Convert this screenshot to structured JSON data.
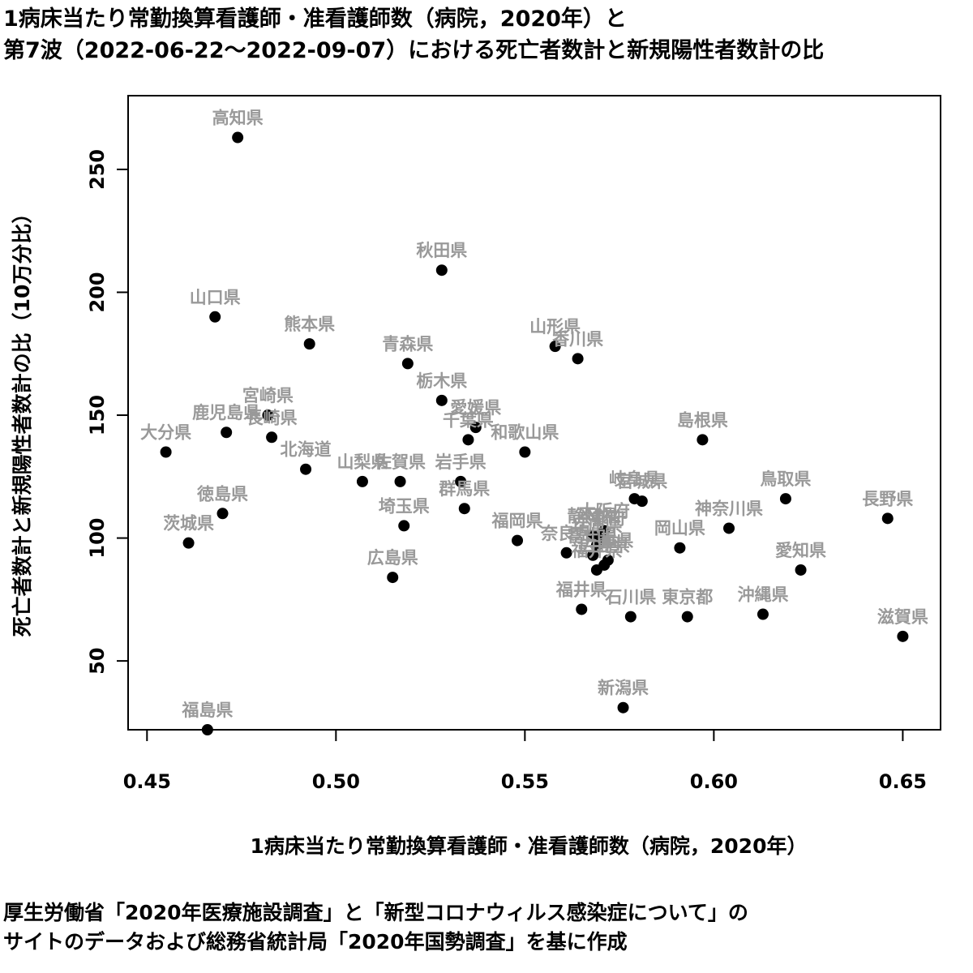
{
  "title": {
    "line1": "1病床当たり常勤換算看護師・准看護師数（病院，2020年）と",
    "line2": "第7波（2022-06-22～2022-09-07）における死亡者数計と新規陽性者数計の比"
  },
  "source": {
    "line1": "厚生労働省「2020年医療施設調査」と「新型コロナウィルス感染症について」の",
    "line2": "サイトのデータおよび総務省統計局「2020年国勢調査」を基に作成"
  },
  "chart_data": {
    "type": "scatter",
    "xlabel": "1病床当たり常勤換算看護師・准看護師数（病院，2020年）",
    "ylabel": "死亡者数計と新規陽性者数計の比（10万分比）",
    "xlim": [
      0.445,
      0.66
    ],
    "ylim": [
      22,
      280
    ],
    "x_ticks": [
      {
        "value": 0.45,
        "label": "0.45"
      },
      {
        "value": 0.5,
        "label": "0.50"
      },
      {
        "value": 0.55,
        "label": "0.55"
      },
      {
        "value": 0.6,
        "label": "0.60"
      },
      {
        "value": 0.65,
        "label": "0.65"
      }
    ],
    "y_ticks": [
      {
        "value": 50,
        "label": "50"
      },
      {
        "value": 100,
        "label": "100"
      },
      {
        "value": 150,
        "label": "150"
      },
      {
        "value": 200,
        "label": "200"
      },
      {
        "value": 250,
        "label": "250"
      }
    ],
    "point_color": "#000000",
    "label_color": "#999999",
    "points": [
      {
        "name": "高知県",
        "x": 0.474,
        "y": 263
      },
      {
        "name": "秋田県",
        "x": 0.528,
        "y": 209
      },
      {
        "name": "山口県",
        "x": 0.468,
        "y": 190
      },
      {
        "name": "熊本県",
        "x": 0.493,
        "y": 179
      },
      {
        "name": "山形県",
        "x": 0.558,
        "y": 178
      },
      {
        "name": "香川県",
        "x": 0.564,
        "y": 173
      },
      {
        "name": "青森県",
        "x": 0.519,
        "y": 171
      },
      {
        "name": "栃木県",
        "x": 0.528,
        "y": 156
      },
      {
        "name": "宮崎県",
        "x": 0.482,
        "y": 150
      },
      {
        "name": "愛媛県",
        "x": 0.537,
        "y": 145
      },
      {
        "name": "鹿児島県",
        "x": 0.471,
        "y": 143
      },
      {
        "name": "長崎県",
        "x": 0.483,
        "y": 141
      },
      {
        "name": "千葉県",
        "x": 0.535,
        "y": 140
      },
      {
        "name": "島根県",
        "x": 0.597,
        "y": 140
      },
      {
        "name": "大分県",
        "x": 0.455,
        "y": 135
      },
      {
        "name": "和歌山県",
        "x": 0.55,
        "y": 135
      },
      {
        "name": "北海道",
        "x": 0.492,
        "y": 128
      },
      {
        "name": "山梨県",
        "x": 0.507,
        "y": 123
      },
      {
        "name": "佐賀県",
        "x": 0.517,
        "y": 123
      },
      {
        "name": "岩手県",
        "x": 0.533,
        "y": 123
      },
      {
        "name": "岐阜県",
        "x": 0.579,
        "y": 116
      },
      {
        "name": "宮城県",
        "x": 0.581,
        "y": 115
      },
      {
        "name": "鳥取県",
        "x": 0.619,
        "y": 116
      },
      {
        "name": "群馬県",
        "x": 0.534,
        "y": 112
      },
      {
        "name": "徳島県",
        "x": 0.47,
        "y": 110
      },
      {
        "name": "長野県",
        "x": 0.646,
        "y": 108
      },
      {
        "name": "埼玉県",
        "x": 0.518,
        "y": 105
      },
      {
        "name": "神奈川県",
        "x": 0.604,
        "y": 104
      },
      {
        "name": "大阪府",
        "x": 0.571,
        "y": 103
      },
      {
        "name": "静岡県",
        "x": 0.568,
        "y": 101
      },
      {
        "name": "京都府",
        "x": 0.57,
        "y": 100
      },
      {
        "name": "福岡県",
        "x": 0.548,
        "y": 99
      },
      {
        "name": "茨城県",
        "x": 0.461,
        "y": 98
      },
      {
        "name": "兵庫県",
        "x": 0.569,
        "y": 97
      },
      {
        "name": "岡山県",
        "x": 0.591,
        "y": 96
      },
      {
        "name": "奈良県",
        "x": 0.561,
        "y": 94
      },
      {
        "name": "富山県",
        "x": 0.568,
        "y": 93
      },
      {
        "name": "三重県",
        "x": 0.572,
        "y": 91
      },
      {
        "name": "広島県",
        "x": 0.571,
        "y": 89
      },
      {
        "name": "愛知県",
        "x": 0.623,
        "y": 87
      },
      {
        "name": "福井県",
        "x": 0.569,
        "y": 87
      },
      {
        "name": "広島県",
        "x": 0.515,
        "y": 84
      },
      {
        "name": "福井県",
        "x": 0.565,
        "y": 71
      },
      {
        "name": "沖縄県",
        "x": 0.613,
        "y": 69
      },
      {
        "name": "石川県",
        "x": 0.578,
        "y": 68
      },
      {
        "name": "東京都",
        "x": 0.593,
        "y": 68
      },
      {
        "name": "滋賀県",
        "x": 0.65,
        "y": 60
      },
      {
        "name": "新潟県",
        "x": 0.576,
        "y": 31
      },
      {
        "name": "福島県",
        "x": 0.466,
        "y": 22
      }
    ]
  }
}
